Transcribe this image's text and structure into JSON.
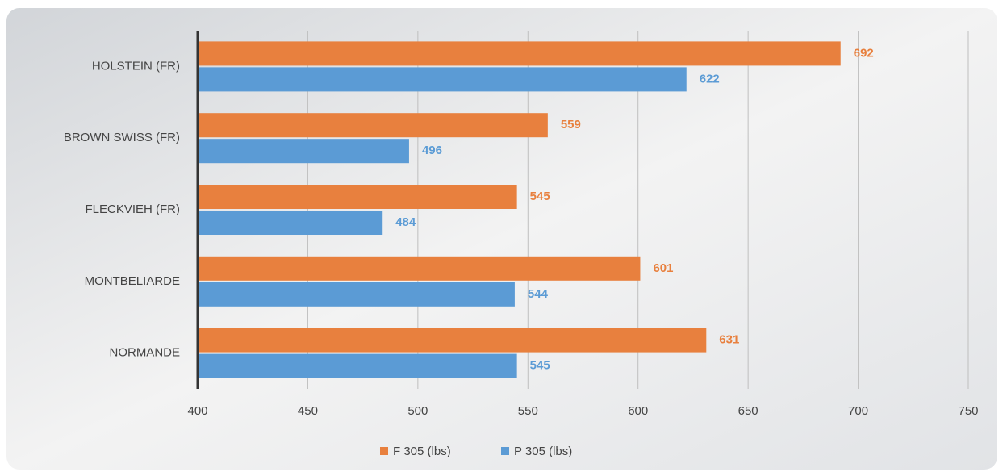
{
  "chart_data": {
    "type": "bar",
    "orientation": "horizontal",
    "categories": [
      "HOLSTEIN (FR)",
      "BROWN SWISS (FR)",
      "FLECKVIEH (FR)",
      "MONTBELIARDE",
      "NORMANDE"
    ],
    "series": [
      {
        "name": "F 305 (lbs)",
        "color": "#e8803e",
        "values": [
          692,
          559,
          545,
          601,
          631
        ]
      },
      {
        "name": "P 305 (lbs)",
        "color": "#5b9bd5",
        "values": [
          622,
          496,
          484,
          544,
          545
        ]
      }
    ],
    "xlim": [
      400,
      750
    ],
    "xticks": [
      400,
      450,
      500,
      550,
      600,
      650,
      700,
      750
    ],
    "grid": true,
    "legend": "bottom"
  }
}
